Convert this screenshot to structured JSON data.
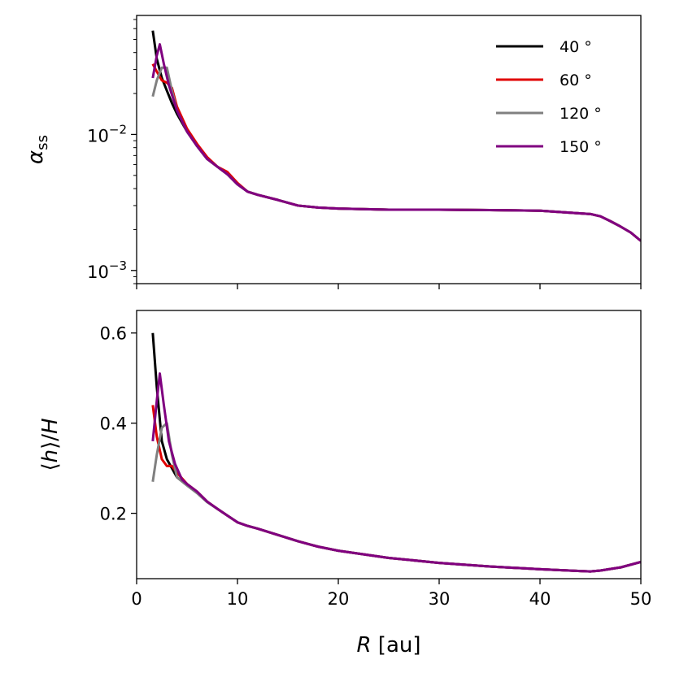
{
  "chart_data": [
    {
      "type": "line",
      "ylabel": "α_ss",
      "yscale": "log",
      "ylim": [
        0.0008,
        0.075
      ],
      "xlim": [
        0,
        50
      ],
      "y_tick_labels": [
        "10^-3",
        "10^-2"
      ],
      "y_ticks": [
        0.001,
        0.01
      ],
      "legend": {
        "placement": "top-right"
      },
      "series": [
        {
          "name": "40°",
          "color": "#000000",
          "x": [
            1.6,
            2.0,
            2.5,
            3.0,
            3.5,
            4.0,
            5.0,
            6.0,
            7.0,
            8.0,
            9.0,
            10.0,
            11.0,
            12.0,
            14.0,
            16.0,
            18.0,
            20.0,
            25.0,
            30.0,
            35.0,
            40.0,
            45.0,
            46.0,
            47.0,
            48.0,
            49.0,
            50.0
          ],
          "y": [
            0.058,
            0.036,
            0.026,
            0.021,
            0.017,
            0.0142,
            0.0105,
            0.0082,
            0.0066,
            0.0058,
            0.0051,
            0.0043,
            0.0038,
            0.0036,
            0.0033,
            0.003,
            0.0029,
            0.00285,
            0.0028,
            0.0028,
            0.00278,
            0.00275,
            0.0026,
            0.0025,
            0.0023,
            0.0021,
            0.0019,
            0.00165
          ]
        },
        {
          "name": "60°",
          "color": "#e00000",
          "x": [
            1.6,
            2.0,
            2.5,
            3.0,
            3.5,
            4.0,
            5.0,
            6.0,
            7.0,
            8.0,
            9.0,
            10.0,
            11.0,
            12.0,
            14.0,
            16.0,
            18.0,
            20.0,
            25.0,
            30.0,
            35.0,
            40.0,
            45.0,
            46.0,
            47.0,
            48.0,
            49.0,
            50.0
          ],
          "y": [
            0.033,
            0.029,
            0.025,
            0.024,
            0.022,
            0.016,
            0.011,
            0.0085,
            0.0068,
            0.0058,
            0.0053,
            0.0044,
            0.0038,
            0.0036,
            0.0033,
            0.003,
            0.0029,
            0.00285,
            0.0028,
            0.0028,
            0.00278,
            0.00275,
            0.0026,
            0.0025,
            0.0023,
            0.0021,
            0.0019,
            0.00165
          ]
        },
        {
          "name": "120°",
          "color": "#808080",
          "x": [
            1.6,
            2.0,
            2.5,
            3.0,
            3.5,
            4.0,
            5.0,
            6.0,
            7.0,
            8.0,
            9.0,
            10.0,
            11.0,
            12.0,
            14.0,
            16.0,
            18.0,
            20.0,
            25.0,
            30.0,
            35.0,
            40.0,
            45.0,
            46.0,
            47.0,
            48.0,
            49.0,
            50.0
          ],
          "y": [
            0.019,
            0.025,
            0.031,
            0.031,
            0.021,
            0.015,
            0.0105,
            0.0082,
            0.0066,
            0.0058,
            0.0051,
            0.0043,
            0.0038,
            0.0036,
            0.0033,
            0.003,
            0.0029,
            0.00285,
            0.0028,
            0.0028,
            0.00278,
            0.00275,
            0.0026,
            0.0025,
            0.0023,
            0.0021,
            0.0019,
            0.00165
          ]
        },
        {
          "name": "150°",
          "color": "#800080",
          "x": [
            1.6,
            2.0,
            2.3,
            2.7,
            3.2,
            4.0,
            5.0,
            6.0,
            7.0,
            8.0,
            9.0,
            10.0,
            11.0,
            12.0,
            14.0,
            16.0,
            18.0,
            20.0,
            25.0,
            30.0,
            35.0,
            40.0,
            45.0,
            46.0,
            47.0,
            48.0,
            49.0,
            50.0
          ],
          "y": [
            0.026,
            0.038,
            0.046,
            0.033,
            0.023,
            0.015,
            0.0105,
            0.0082,
            0.0066,
            0.0058,
            0.0051,
            0.0043,
            0.0038,
            0.0036,
            0.0033,
            0.003,
            0.0029,
            0.00285,
            0.0028,
            0.0028,
            0.00278,
            0.00275,
            0.0026,
            0.0025,
            0.0023,
            0.0021,
            0.0019,
            0.00165
          ]
        }
      ]
    },
    {
      "type": "line",
      "xlabel": "R [au]",
      "ylabel": "⟨h⟩/H",
      "xlim": [
        0,
        50
      ],
      "ylim": [
        0.055,
        0.65
      ],
      "x_ticks": [
        0,
        10,
        20,
        30,
        40,
        50
      ],
      "x_tick_labels": [
        "0",
        "10",
        "20",
        "30",
        "40",
        "50"
      ],
      "y_ticks": [
        0.2,
        0.4,
        0.6
      ],
      "y_tick_labels": [
        "0.2",
        "0.4",
        "0.6"
      ],
      "series": [
        {
          "name": "40°",
          "color": "#000000",
          "x": [
            1.6,
            2.0,
            2.5,
            3.0,
            3.5,
            4.0,
            5.0,
            6.0,
            7.0,
            8.0,
            9.0,
            10.0,
            11.0,
            12.0,
            14.0,
            16.0,
            18.0,
            20.0,
            25.0,
            30.0,
            35.0,
            40.0,
            44.0,
            45.0,
            46.0,
            48.0,
            50.0
          ],
          "y": [
            0.6,
            0.48,
            0.36,
            0.32,
            0.3,
            0.28,
            0.262,
            0.245,
            0.225,
            0.21,
            0.195,
            0.18,
            0.172,
            0.166,
            0.152,
            0.138,
            0.126,
            0.117,
            0.101,
            0.09,
            0.082,
            0.076,
            0.072,
            0.071,
            0.073,
            0.08,
            0.092
          ]
        },
        {
          "name": "60°",
          "color": "#e00000",
          "x": [
            1.6,
            2.0,
            2.5,
            3.0,
            3.5,
            4.0,
            5.0,
            6.0,
            7.0,
            8.0,
            9.0,
            10.0,
            11.0,
            12.0,
            14.0,
            16.0,
            18.0,
            20.0,
            25.0,
            30.0,
            35.0,
            40.0,
            44.0,
            45.0,
            46.0,
            48.0,
            50.0
          ],
          "y": [
            0.44,
            0.37,
            0.32,
            0.305,
            0.305,
            0.29,
            0.265,
            0.248,
            0.226,
            0.21,
            0.195,
            0.18,
            0.172,
            0.166,
            0.152,
            0.138,
            0.126,
            0.117,
            0.101,
            0.09,
            0.082,
            0.076,
            0.072,
            0.071,
            0.073,
            0.08,
            0.092
          ]
        },
        {
          "name": "120°",
          "color": "#808080",
          "x": [
            1.6,
            2.0,
            2.5,
            3.0,
            3.5,
            4.0,
            5.0,
            6.0,
            7.0,
            8.0,
            9.0,
            10.0,
            11.0,
            12.0,
            14.0,
            16.0,
            18.0,
            20.0,
            25.0,
            30.0,
            35.0,
            40.0,
            44.0,
            45.0,
            46.0,
            48.0,
            50.0
          ],
          "y": [
            0.27,
            0.33,
            0.39,
            0.4,
            0.33,
            0.28,
            0.262,
            0.245,
            0.225,
            0.21,
            0.195,
            0.18,
            0.172,
            0.166,
            0.152,
            0.138,
            0.126,
            0.117,
            0.101,
            0.09,
            0.082,
            0.076,
            0.072,
            0.071,
            0.073,
            0.08,
            0.092
          ]
        },
        {
          "name": "150°",
          "color": "#800080",
          "x": [
            1.6,
            2.0,
            2.3,
            2.7,
            3.2,
            3.8,
            4.5,
            5.0,
            6.0,
            7.0,
            8.0,
            9.0,
            10.0,
            11.0,
            12.0,
            14.0,
            16.0,
            18.0,
            20.0,
            25.0,
            30.0,
            35.0,
            40.0,
            44.0,
            45.0,
            46.0,
            48.0,
            50.0
          ],
          "y": [
            0.36,
            0.45,
            0.51,
            0.44,
            0.36,
            0.31,
            0.275,
            0.265,
            0.248,
            0.226,
            0.21,
            0.195,
            0.18,
            0.172,
            0.166,
            0.152,
            0.138,
            0.126,
            0.117,
            0.101,
            0.09,
            0.082,
            0.076,
            0.072,
            0.071,
            0.073,
            0.08,
            0.092
          ]
        }
      ]
    }
  ]
}
